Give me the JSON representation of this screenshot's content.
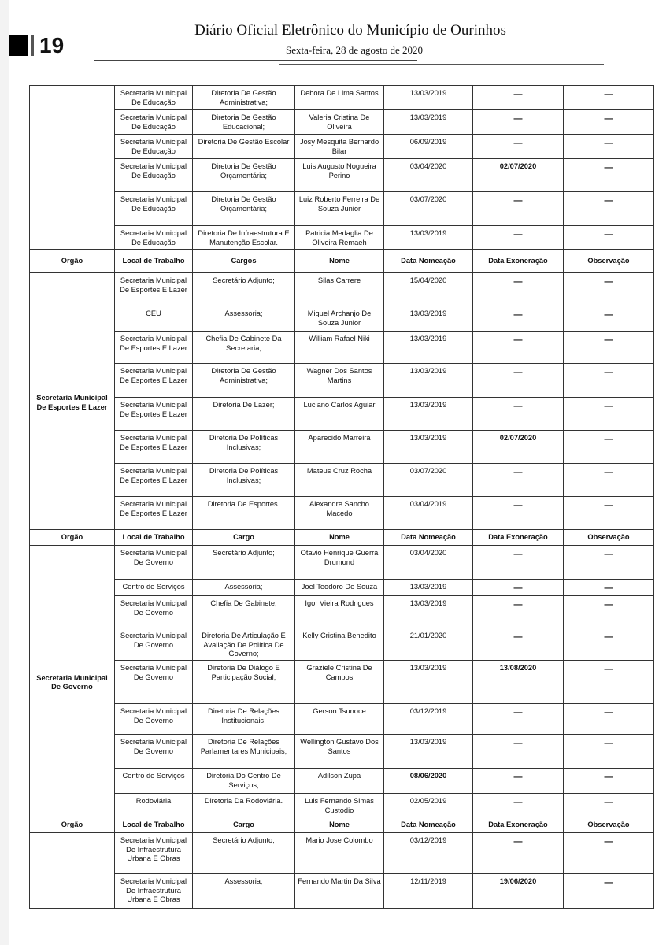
{
  "header": {
    "page_number": "19",
    "title": "Diário Oficial Eletrônico do Município de Ourinhos",
    "date": "Sexta-feira, 28 de agosto de 2020"
  },
  "sections": [
    {
      "orgao": "",
      "header": null,
      "rows": [
        [
          "Secretaria Municipal De Educação",
          "Diretoria De Gestão Administrativa;",
          "Debora De Lima Santos",
          "13/03/2019",
          "—",
          "—"
        ],
        [
          "Secretaria Municipal De Educação",
          "Diretoria De Gestão Educacional;",
          "Valeria Cristina De Oliveira",
          "13/03/2019",
          "—",
          "—"
        ],
        [
          "Secretaria Municipal De Educação",
          "Diretoria De Gestão Escolar",
          "Josy Mesquita Bernardo Bilar",
          "06/09/2019",
          "—",
          "—"
        ],
        [
          "Secretaria Municipal De Educação",
          "Diretoria De Gestão Orçamentária;",
          "Luis Augusto Nogueira Perino",
          "03/04/2020",
          "02/07/2020",
          "—"
        ],
        [
          "Secretaria Municipal De Educação",
          "Diretoria De Gestão Orçamentária;",
          "Luiz Roberto Ferreira De Souza Junior",
          "03/07/2020",
          "—",
          "—"
        ],
        [
          "Secretaria Municipal De Educação",
          "Diretoria De Infraestrutura E Manutenção Escolar.",
          "Patricia Medaglia De Oliveira Remaeh",
          "13/03/2019",
          "—",
          "—"
        ]
      ]
    },
    {
      "orgao": "Secretaria Municipal De Esportes E Lazer",
      "header": [
        "Orgão",
        "Local de Trabalho",
        "Cargos",
        "Nome",
        "Data Nomeação",
        "Data  Exoneração",
        "Observação"
      ],
      "rows": [
        [
          "Secretaria Municipal De Esportes E Lazer",
          "Secretário Adjunto;",
          "Silas Carrere",
          "15/04/2020",
          "—",
          "—"
        ],
        [
          "CEU",
          "Assessoria;",
          "Miguel Archanjo De Souza Junior",
          "13/03/2019",
          "—",
          "—"
        ],
        [
          "Secretaria Municipal De Esportes E Lazer",
          "Chefia De Gabinete Da Secretaria;",
          "William Rafael Niki",
          "13/03/2019",
          "—",
          "—"
        ],
        [
          "Secretaria Municipal De Esportes E Lazer",
          "Diretoria De Gestão Administrativa;",
          "Wagner Dos Santos Martins",
          "13/03/2019",
          "—",
          "—"
        ],
        [
          "Secretaria Municipal De Esportes E Lazer",
          "Diretoria De Lazer;",
          "Luciano Carlos Aguiar",
          "13/03/2019",
          "—",
          "—"
        ],
        [
          "Secretaria Municipal De Esportes E Lazer",
          "Diretoria De Políticas Inclusivas;",
          "Aparecido Marreira",
          "13/03/2019",
          "02/07/2020",
          "—"
        ],
        [
          "Secretaria Municipal De Esportes E Lazer",
          "Diretoria De Políticas Inclusivas;",
          "Mateus Cruz Rocha",
          "03/07/2020",
          "—",
          "—"
        ],
        [
          "Secretaria Municipal De Esportes E Lazer",
          "Diretoria De Esportes.",
          "Alexandre Sancho Macedo",
          "03/04/2019",
          "—",
          "—"
        ]
      ]
    },
    {
      "orgao": "Secretaria Municipal De Governo",
      "header": [
        "Orgão",
        "Local de Trabalho",
        "Cargo",
        "Nome",
        "Data Nomeação",
        "Data  Exoneração",
        "Observação"
      ],
      "rows": [
        [
          "Secretaria Municipal De Governo",
          "Secretário Adjunto;",
          "Otavio Henrique Guerra Drumond",
          "03/04/2020",
          "—",
          "—"
        ],
        [
          "Centro de Serviços",
          "Assessoria;",
          "Joel Teodoro De Souza",
          "13/03/2019",
          "—",
          "—"
        ],
        [
          "Secretaria Municipal De Governo",
          "Chefia De Gabinete;",
          "Igor Vieira Rodrigues",
          "13/03/2019",
          "—",
          "—"
        ],
        [
          "Secretaria Municipal De Governo",
          "Diretoria De Articulação E Avaliação De Política De Governo;",
          "Kelly Cristina Benedito",
          "21/01/2020",
          "—",
          "—"
        ],
        [
          "Secretaria Municipal De Governo",
          "Diretoria De Diálogo E Participação Social;",
          "Graziele Cristina De Campos",
          "13/03/2019",
          "13/08/2020",
          "—"
        ],
        [
          "Secretaria Municipal De Governo",
          "Diretoria De Relações Institucionais;",
          "Gerson Tsunoce",
          "03/12/2019",
          "—",
          "—"
        ],
        [
          "Secretaria Municipal De Governo",
          "Diretoria De Relações Parlamentares Municipais;",
          "Wellington Gustavo Dos Santos",
          "13/03/2019",
          "—",
          "—"
        ],
        [
          "Centro de Serviços",
          "Diretoria Do Centro De Serviços;",
          "Adilson Zupa",
          "08/06/2020",
          "—",
          "—"
        ],
        [
          "Rodoviária",
          "Diretoria Da Rodoviária.",
          "Luis Fernando Simas Custodio",
          "02/05/2019",
          "—",
          "—"
        ]
      ]
    },
    {
      "orgao": "",
      "header": [
        "Orgão",
        "Local de Trabalho",
        "Cargo",
        "Nome",
        "Data Nomeação",
        "Data  Exoneração",
        "Observação"
      ],
      "rows": [
        [
          "Secretaria Municipal De Infraestrutura Urbana E Obras",
          "Secretário Adjunto;",
          "Mario Jose Colombo",
          "03/12/2019",
          "—",
          "—"
        ],
        [
          "Secretaria Municipal De Infraestrutura Urbana E Obras",
          "Assessoria;",
          "Fernando Martin Da Silva",
          "12/11/2019",
          "19/06/2020",
          "—"
        ]
      ]
    }
  ]
}
